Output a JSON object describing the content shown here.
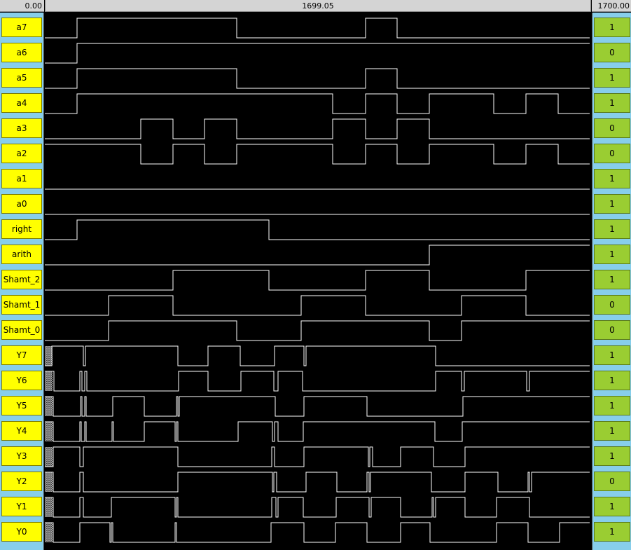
{
  "header": {
    "left_time": "0.00",
    "cursor_time": "1699.05",
    "right_time": "1700.00"
  },
  "signals": [
    {
      "name": "a7",
      "value": "1",
      "t": [
        0,
        1,
        0,
        1,
        0,
        1
      ],
      "s": [
        0,
        0.06,
        0.35,
        0.59,
        0.65,
        1
      ]
    },
    {
      "name": "a6",
      "value": "0",
      "t": [
        0,
        1,
        0
      ],
      "s": [
        0,
        0.06,
        1
      ]
    },
    {
      "name": "a5",
      "value": "1",
      "t": [
        0,
        1,
        0,
        1,
        0,
        1
      ],
      "s": [
        0,
        0.06,
        0.35,
        0.59,
        0.65,
        1
      ]
    },
    {
      "name": "a4",
      "value": "1",
      "t": [
        0,
        1,
        0,
        1,
        0,
        1,
        0,
        1,
        0,
        1,
        0,
        1
      ],
      "s": [
        0,
        0.06,
        0.53,
        0.59,
        0.65,
        0.71,
        0.82,
        0.88,
        0.94,
        1,
        0,
        1
      ]
    },
    {
      "name": "a3",
      "value": "0",
      "t": [],
      "s": []
    },
    {
      "name": "a2",
      "value": "0",
      "t": [],
      "s": []
    },
    {
      "name": "a1",
      "value": "1",
      "t": [],
      "s": []
    },
    {
      "name": "a0",
      "value": "1",
      "t": [],
      "s": []
    },
    {
      "name": "right",
      "value": "1",
      "t": [],
      "s": []
    },
    {
      "name": "arith",
      "value": "1",
      "t": [],
      "s": []
    },
    {
      "name": "Shamt_2",
      "value": "1",
      "t": [],
      "s": []
    },
    {
      "name": "Shamt_1",
      "value": "0",
      "t": [],
      "s": []
    },
    {
      "name": "Shamt_0",
      "value": "0",
      "t": [],
      "s": []
    },
    {
      "name": "Y7",
      "value": "1",
      "t": [],
      "s": []
    },
    {
      "name": "Y6",
      "value": "1",
      "t": [],
      "s": []
    },
    {
      "name": "Y5",
      "value": "1",
      "t": [],
      "s": []
    },
    {
      "name": "Y4",
      "value": "1",
      "t": [],
      "s": []
    },
    {
      "name": "Y3",
      "value": "1",
      "t": [],
      "s": []
    },
    {
      "name": "Y2",
      "value": "0",
      "t": [],
      "s": []
    },
    {
      "name": "Y1",
      "value": "1",
      "t": [],
      "s": []
    },
    {
      "name": "Y0",
      "value": "1",
      "t": [],
      "s": []
    }
  ]
}
